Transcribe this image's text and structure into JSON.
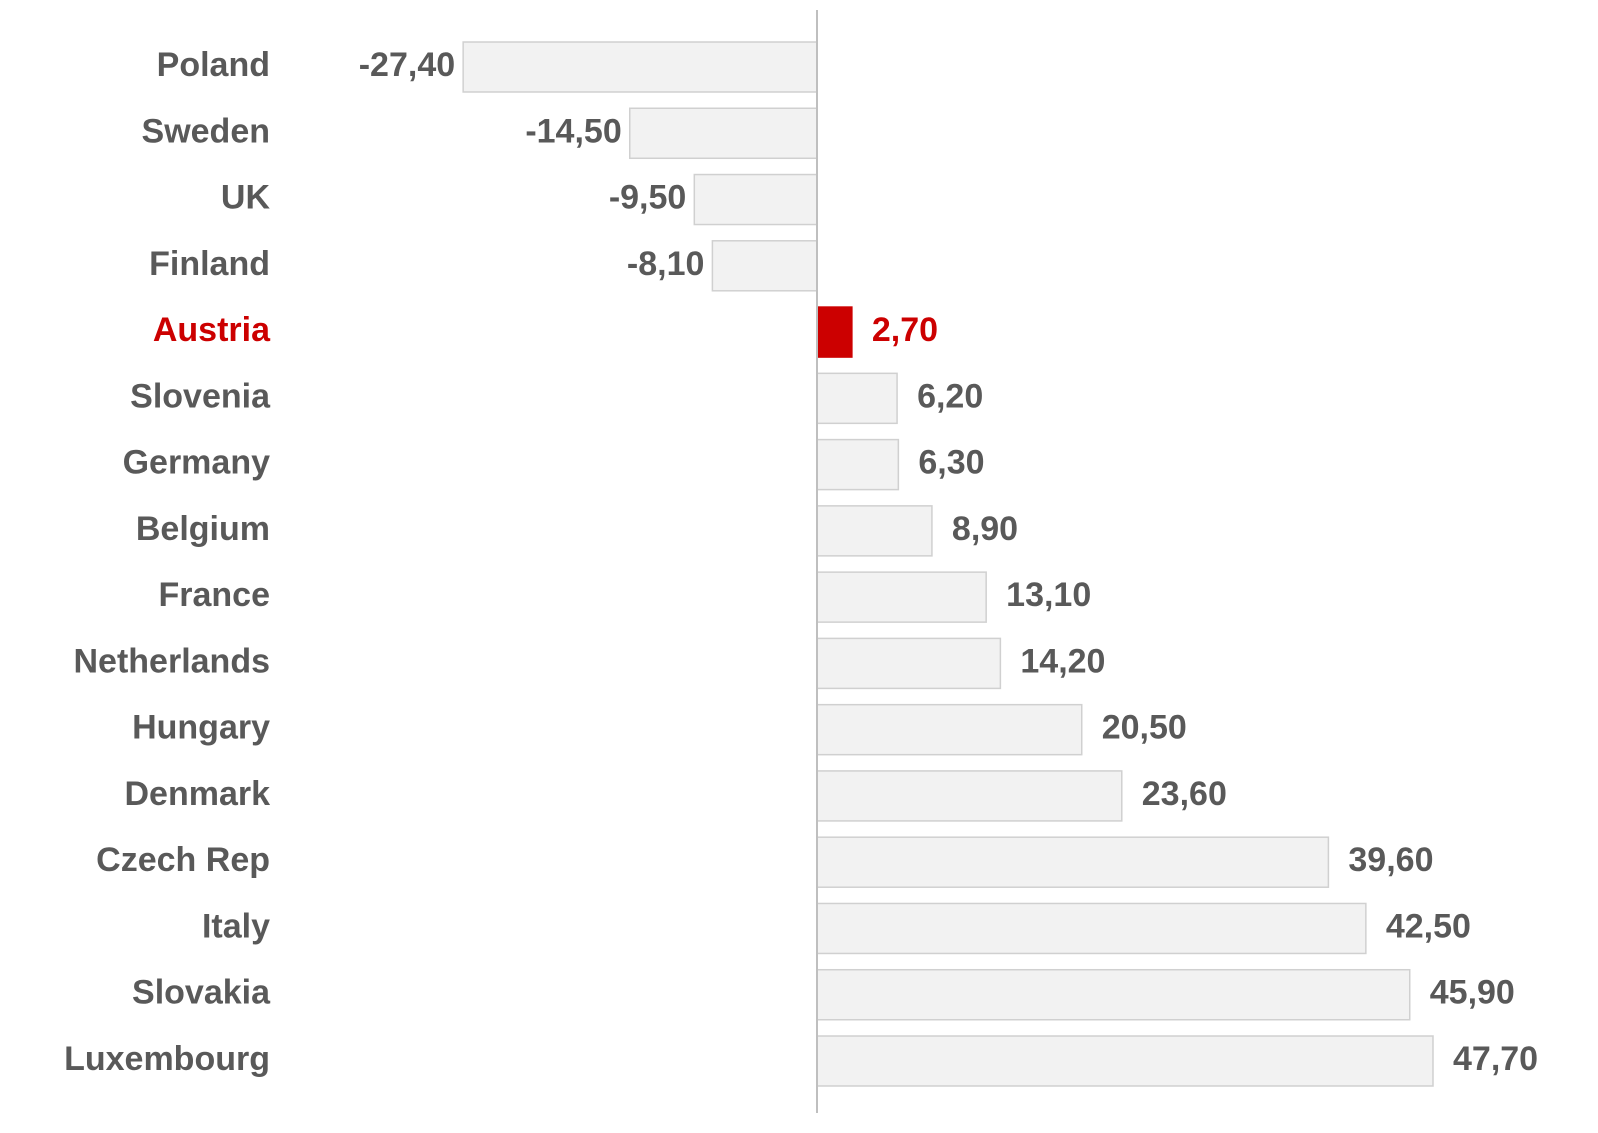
{
  "chart_data": {
    "type": "bar",
    "orientation": "horizontal",
    "categories": [
      "Poland",
      "Sweden",
      "UK",
      "Finland",
      "Austria",
      "Slovenia",
      "Germany",
      "Belgium",
      "France",
      "Netherlands",
      "Hungary",
      "Denmark",
      "Czech Rep",
      "Italy",
      "Slovakia",
      "Luxembourg"
    ],
    "values": [
      -27.4,
      -14.5,
      -9.5,
      -8.1,
      2.7,
      6.2,
      6.3,
      8.9,
      13.1,
      14.2,
      20.5,
      23.6,
      39.6,
      42.5,
      45.9,
      47.7
    ],
    "value_labels": [
      "-27,40",
      "-14,50",
      "-9,50",
      "-8,10",
      "2,70",
      "6,20",
      "6,30",
      "8,90",
      "13,10",
      "14,20",
      "20,50",
      "23,60",
      "39,60",
      "42,50",
      "45,90",
      "47,70"
    ],
    "color": "#f2f2f2",
    "colors": [
      "#f2f2f2",
      "#f2f2f2",
      "#f2f2f2",
      "#f2f2f2",
      "#cc0000",
      "#f2f2f2",
      "#f2f2f2",
      "#f2f2f2",
      "#f2f2f2",
      "#f2f2f2",
      "#f2f2f2",
      "#f2f2f2",
      "#f2f2f2",
      "#f2f2f2",
      "#f2f2f2",
      "#f2f2f2"
    ],
    "text_color": "#595959"
  }
}
